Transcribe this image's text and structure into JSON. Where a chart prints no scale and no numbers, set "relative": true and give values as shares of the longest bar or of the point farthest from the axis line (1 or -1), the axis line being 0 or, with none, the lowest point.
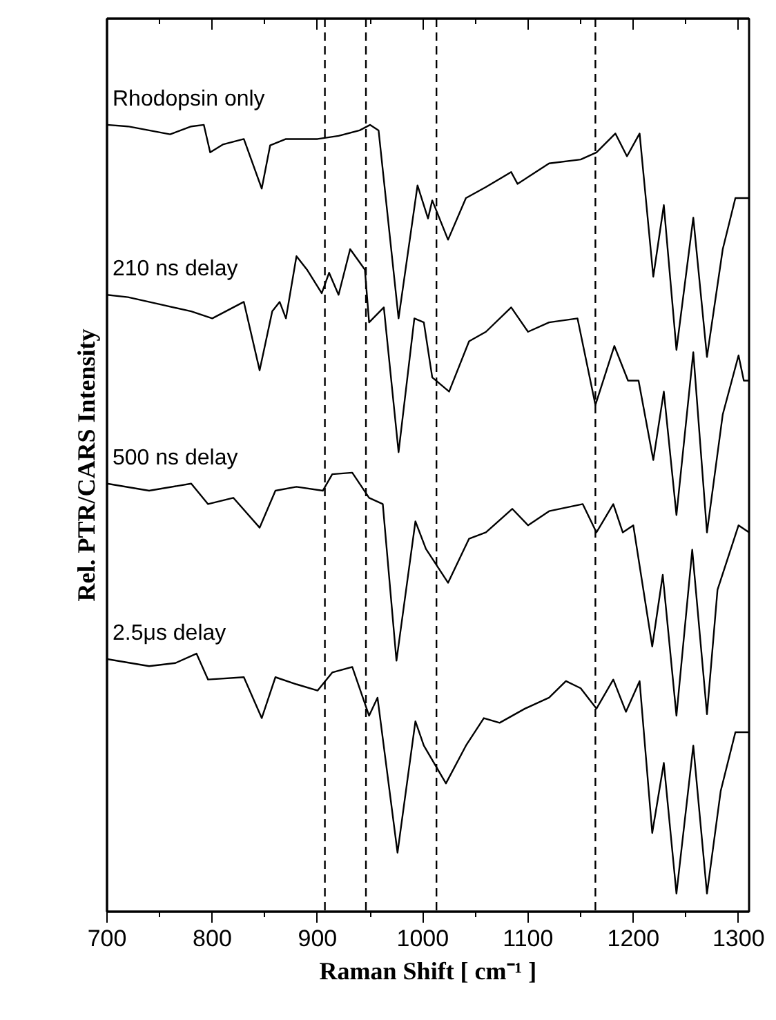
{
  "chart_data": {
    "type": "line",
    "xlabel": "Raman Shift [ cm⁻¹ ]",
    "ylabel": "Rel. PTR/CARS Intensity",
    "relative": true,
    "xlim": [
      700,
      1310
    ],
    "xticks": [
      700,
      800,
      900,
      1000,
      1100,
      1200,
      1300
    ],
    "grid": false,
    "line_style": "solid",
    "marker": "none",
    "ref_lines": [
      {
        "axis": "x",
        "value": 907,
        "color": "#000000",
        "line_style": "dashed"
      },
      {
        "axis": "x",
        "value": 946,
        "color": "#000000",
        "line_style": "dashed"
      },
      {
        "axis": "x",
        "value": 1013,
        "color": "#000000",
        "line_style": "dashed"
      },
      {
        "axis": "x",
        "value": 1164,
        "color": "#000000",
        "line_style": "dashed"
      }
    ],
    "series": [
      {
        "name": "Rhodopsin only",
        "color": "#000000",
        "x": [
          700,
          720,
          760,
          780,
          792,
          798,
          810,
          830,
          847,
          855,
          870,
          900,
          920,
          940,
          950,
          958,
          977,
          995,
          1005,
          1009,
          1024,
          1041,
          1060,
          1084,
          1090,
          1120,
          1150,
          1165,
          1183,
          1194,
          1206,
          1219,
          1229,
          1241,
          1257,
          1270,
          1285,
          1297,
          1310
        ],
        "values": [
          1.0,
          0.998,
          0.988,
          0.998,
          1.0,
          0.965,
          0.975,
          0.982,
          0.919,
          0.974,
          0.982,
          0.982,
          0.986,
          0.993,
          1.0,
          0.993,
          0.754,
          0.923,
          0.881,
          0.904,
          0.854,
          0.907,
          0.921,
          0.94,
          0.925,
          0.951,
          0.956,
          0.965,
          0.989,
          0.96,
          0.989,
          0.807,
          0.898,
          0.714,
          0.882,
          0.705,
          0.842,
          0.907,
          0.907
        ]
      },
      {
        "name": "210 ns delay",
        "color": "#000000",
        "x": [
          700,
          720,
          750,
          780,
          800,
          820,
          830,
          845,
          857,
          864,
          870,
          880,
          890,
          904,
          911,
          920,
          931,
          945,
          949,
          963,
          977,
          992,
          1001,
          1009,
          1025,
          1044,
          1060,
          1084,
          1100,
          1120,
          1147,
          1164,
          1182,
          1195,
          1205,
          1219,
          1229,
          1241,
          1257,
          1270,
          1285,
          1300,
          1305,
          1310
        ],
        "values": [
          0.784,
          0.781,
          0.772,
          0.763,
          0.754,
          0.768,
          0.775,
          0.688,
          0.763,
          0.775,
          0.754,
          0.833,
          0.816,
          0.786,
          0.812,
          0.784,
          0.842,
          0.816,
          0.749,
          0.768,
          0.584,
          0.754,
          0.749,
          0.679,
          0.661,
          0.725,
          0.737,
          0.768,
          0.737,
          0.749,
          0.754,
          0.644,
          0.719,
          0.675,
          0.675,
          0.574,
          0.661,
          0.504,
          0.711,
          0.482,
          0.632,
          0.707,
          0.675,
          0.675
        ]
      },
      {
        "name": "500 ns delay",
        "color": "#000000",
        "x": [
          700,
          740,
          780,
          796,
          820,
          845,
          860,
          880,
          905,
          914,
          933,
          949,
          962,
          975,
          993,
          1003,
          1024,
          1044,
          1060,
          1085,
          1100,
          1120,
          1152,
          1165,
          1181,
          1190,
          1200,
          1218,
          1228,
          1241,
          1256,
          1270,
          1280,
          1300,
          1310
        ],
        "values": [
          0.544,
          0.535,
          0.544,
          0.518,
          0.526,
          0.488,
          0.535,
          0.54,
          0.535,
          0.556,
          0.558,
          0.526,
          0.518,
          0.319,
          0.496,
          0.461,
          0.418,
          0.474,
          0.482,
          0.512,
          0.491,
          0.509,
          0.518,
          0.482,
          0.518,
          0.482,
          0.491,
          0.337,
          0.428,
          0.249,
          0.46,
          0.251,
          0.409,
          0.491,
          0.482
        ]
      },
      {
        "name": "2.5μs delay",
        "color": "#000000",
        "x": [
          700,
          740,
          765,
          785,
          796,
          830,
          847,
          860,
          880,
          900,
          914,
          933,
          949,
          957,
          976,
          993,
          1001,
          1022,
          1041,
          1058,
          1073,
          1097,
          1120,
          1136,
          1150,
          1165,
          1181,
          1193,
          1206,
          1218,
          1229,
          1241,
          1257,
          1270,
          1283,
          1297,
          1310
        ],
        "values": [
          0.321,
          0.312,
          0.316,
          0.328,
          0.295,
          0.298,
          0.246,
          0.298,
          0.289,
          0.281,
          0.304,
          0.311,
          0.249,
          0.272,
          0.075,
          0.242,
          0.211,
          0.163,
          0.211,
          0.246,
          0.24,
          0.258,
          0.272,
          0.293,
          0.284,
          0.258,
          0.295,
          0.254,
          0.293,
          0.1,
          0.189,
          0.023,
          0.211,
          0.023,
          0.153,
          0.228,
          0.228
        ]
      }
    ]
  }
}
